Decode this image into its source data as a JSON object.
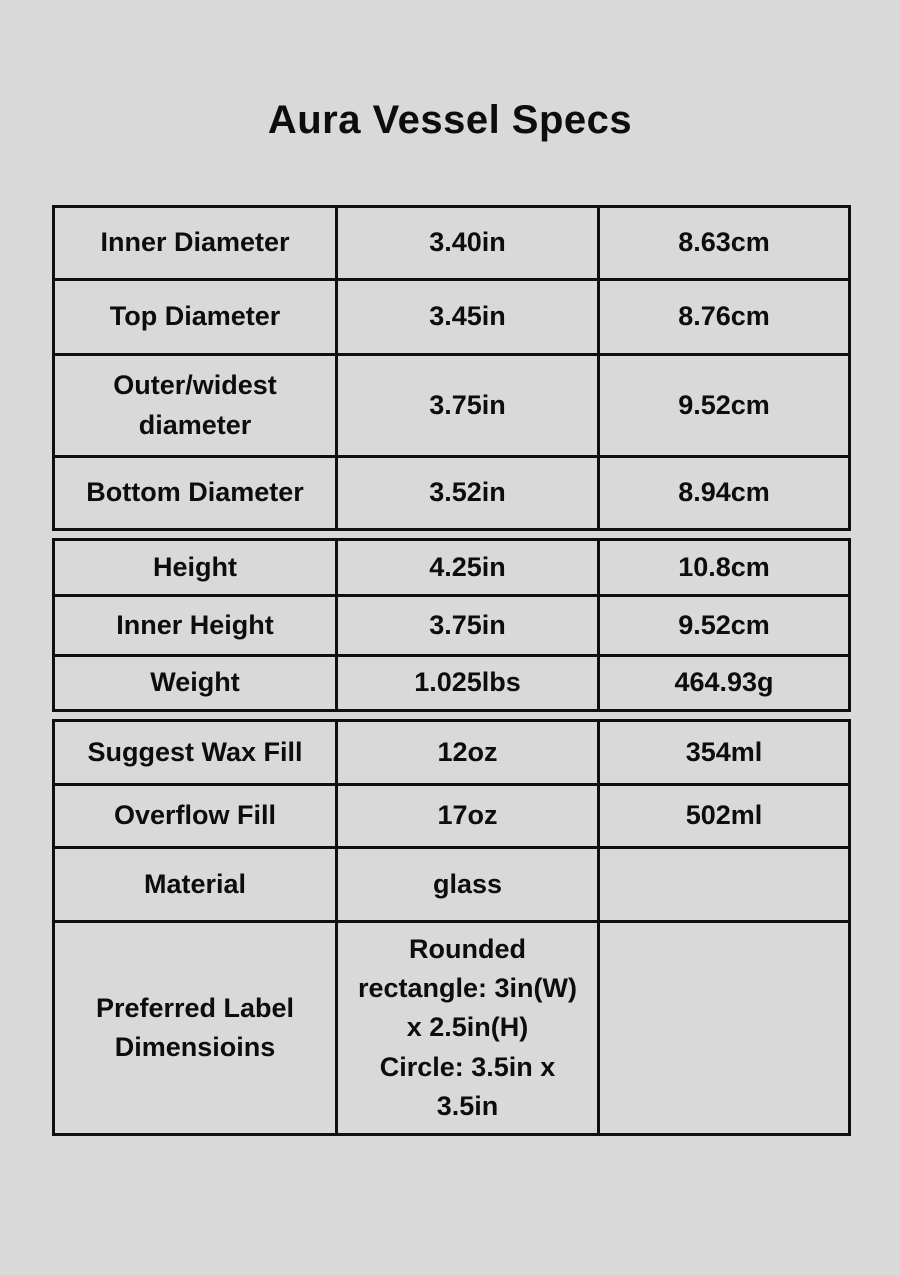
{
  "page": {
    "title": "Aura Vessel Specs"
  },
  "theme": {
    "background": "#d9d9d9",
    "text": "#0d0d0d",
    "border": "#0f0f0f"
  },
  "spec_tables": [
    {
      "rows": [
        {
          "label": "Inner Diameter",
          "imperial": "3.40in",
          "metric": "8.63cm"
        },
        {
          "label": "Top Diameter",
          "imperial": "3.45in",
          "metric": "8.76cm"
        },
        {
          "label": "Outer/widest\ndiameter",
          "imperial": "3.75in",
          "metric": "9.52cm"
        },
        {
          "label": "Bottom Diameter",
          "imperial": "3.52in",
          "metric": "8.94cm"
        }
      ]
    },
    {
      "rows": [
        {
          "label": "Height",
          "imperial": "4.25in",
          "metric": "10.8cm"
        },
        {
          "label": "Inner Height",
          "imperial": "3.75in",
          "metric": "9.52cm"
        },
        {
          "label": "Weight",
          "imperial": "1.025lbs",
          "metric": "464.93g"
        }
      ]
    },
    {
      "rows": [
        {
          "label": "Suggest Wax Fill",
          "imperial": "12oz",
          "metric": "354ml"
        },
        {
          "label": "Overflow Fill",
          "imperial": "17oz",
          "metric": "502ml"
        },
        {
          "label": "Material",
          "imperial": "glass",
          "metric": ""
        },
        {
          "label": "Preferred Label\nDimensioins",
          "imperial": "Rounded\nrectangle: 3in(W)\nx 2.5in(H)\nCircle: 3.5in x\n3.5in",
          "metric": ""
        }
      ]
    }
  ]
}
